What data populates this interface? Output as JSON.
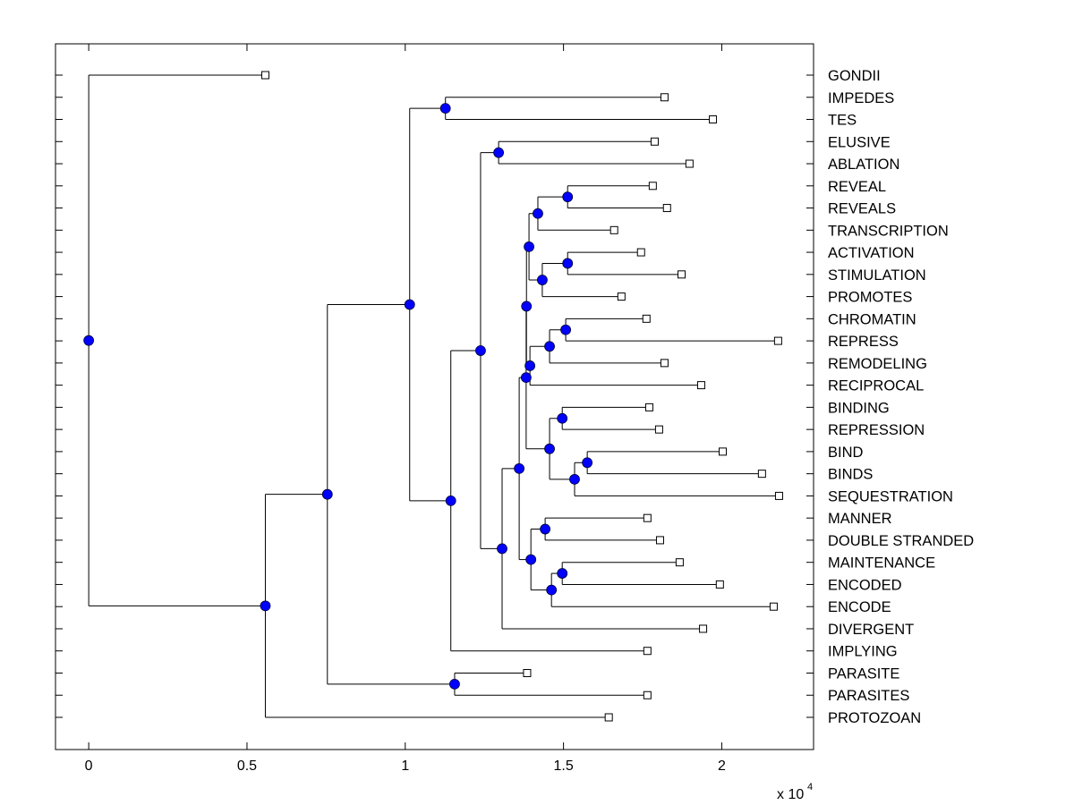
{
  "chart_data": {
    "type": "dendrogram",
    "title": "",
    "xlabel": "",
    "ylabel": "",
    "x_multiplier_label": "x 10",
    "x_multiplier_exponent": "4",
    "xlim": [
      -0.105,
      2.29
    ],
    "xticks": [
      0,
      0.5,
      1,
      1.5,
      2
    ],
    "xtick_labels": [
      "0",
      "0.5",
      "1",
      "1.5",
      "2"
    ],
    "grid": false,
    "node_color": "#0000ff",
    "leaves": [
      {
        "label": "GONDII",
        "x": 0.558
      },
      {
        "label": "IMPEDES",
        "x": 1.819
      },
      {
        "label": "TES",
        "x": 1.972
      },
      {
        "label": "ELUSIVE",
        "x": 1.788
      },
      {
        "label": "ABLATION",
        "x": 1.898
      },
      {
        "label": "REVEAL",
        "x": 1.782
      },
      {
        "label": "REVEALS",
        "x": 1.827
      },
      {
        "label": "TRANSCRIPTION",
        "x": 1.66
      },
      {
        "label": "ACTIVATION",
        "x": 1.745
      },
      {
        "label": "STIMULATION",
        "x": 1.873
      },
      {
        "label": "PROMOTES",
        "x": 1.683
      },
      {
        "label": "CHROMATIN",
        "x": 1.762
      },
      {
        "label": "REPRESS",
        "x": 2.178
      },
      {
        "label": "REMODELING",
        "x": 1.819
      },
      {
        "label": "RECIPROCAL",
        "x": 1.935
      },
      {
        "label": "BINDING",
        "x": 1.771
      },
      {
        "label": "REPRESSION",
        "x": 1.802
      },
      {
        "label": "BIND",
        "x": 2.003
      },
      {
        "label": "BINDS",
        "x": 2.127
      },
      {
        "label": "SEQUESTRATION",
        "x": 2.181
      },
      {
        "label": "MANNER",
        "x": 1.765
      },
      {
        "label": "DOUBLE STRANDED",
        "x": 1.805
      },
      {
        "label": "MAINTENANCE",
        "x": 1.867
      },
      {
        "label": "ENCODED",
        "x": 1.994
      },
      {
        "label": "ENCODE",
        "x": 2.164
      },
      {
        "label": "DIVERGENT",
        "x": 1.941
      },
      {
        "label": "IMPLYING",
        "x": 1.765
      },
      {
        "label": "PARASITE",
        "x": 1.385
      },
      {
        "label": "PARASITES",
        "x": 1.765
      },
      {
        "label": "PROTOZOAN",
        "x": 1.643
      }
    ],
    "nodes": [
      {
        "id": "n_root",
        "x": 0.0,
        "children": [
          "L0",
          "n_a"
        ]
      },
      {
        "id": "n_a",
        "x": 0.558,
        "children": [
          "n_b",
          "L29"
        ]
      },
      {
        "id": "n_b",
        "x": 0.754,
        "children": [
          "n_c",
          "n_p"
        ]
      },
      {
        "id": "n_p",
        "x": 1.156,
        "children": [
          "L27",
          "L28"
        ]
      },
      {
        "id": "n_c",
        "x": 1.014,
        "children": [
          "n_d",
          "n_e"
        ]
      },
      {
        "id": "n_d",
        "x": 1.127,
        "children": [
          "L1",
          "L2"
        ]
      },
      {
        "id": "n_e",
        "x": 1.144,
        "children": [
          "n_f",
          "L26"
        ]
      },
      {
        "id": "n_f",
        "x": 1.238,
        "children": [
          "n_g",
          "n_h"
        ]
      },
      {
        "id": "n_g",
        "x": 1.295,
        "children": [
          "L3",
          "L4"
        ]
      },
      {
        "id": "n_h",
        "x": 1.306,
        "children": [
          "n_i",
          "L25"
        ]
      },
      {
        "id": "n_i",
        "x": 1.36,
        "children": [
          "n_j",
          "n_k"
        ]
      },
      {
        "id": "n_j",
        "x": 1.382,
        "children": [
          "n_l",
          "n_m"
        ]
      },
      {
        "id": "n_l",
        "x": 1.383,
        "children": [
          "n_q",
          "n_o"
        ]
      },
      {
        "id": "n_q",
        "x": 1.391,
        "children": [
          "n_r",
          "n_s"
        ]
      },
      {
        "id": "n_r",
        "x": 1.419,
        "children": [
          "n_t",
          "L7"
        ]
      },
      {
        "id": "n_t",
        "x": 1.513,
        "children": [
          "L5",
          "L6"
        ]
      },
      {
        "id": "n_s",
        "x": 1.433,
        "children": [
          "n_u",
          "L10"
        ]
      },
      {
        "id": "n_u",
        "x": 1.513,
        "children": [
          "L8",
          "L9"
        ]
      },
      {
        "id": "n_o",
        "x": 1.394,
        "children": [
          "n_n",
          "L14"
        ]
      },
      {
        "id": "n_n",
        "x": 1.456,
        "children": [
          "n_v",
          "L13"
        ]
      },
      {
        "id": "n_v",
        "x": 1.507,
        "children": [
          "L11",
          "L12"
        ]
      },
      {
        "id": "n_m",
        "x": 1.456,
        "children": [
          "n_w",
          "n_x"
        ]
      },
      {
        "id": "n_w",
        "x": 1.496,
        "children": [
          "L15",
          "L16"
        ]
      },
      {
        "id": "n_x",
        "x": 1.535,
        "children": [
          "n_y",
          "L19"
        ]
      },
      {
        "id": "n_y",
        "x": 1.575,
        "children": [
          "L17",
          "L18"
        ]
      },
      {
        "id": "n_k",
        "x": 1.397,
        "children": [
          "n_z",
          "n_aa"
        ]
      },
      {
        "id": "n_z",
        "x": 1.442,
        "children": [
          "L20",
          "L21"
        ]
      },
      {
        "id": "n_aa",
        "x": 1.462,
        "children": [
          "n_ab",
          "L24"
        ]
      },
      {
        "id": "n_ab",
        "x": 1.496,
        "children": [
          "L22",
          "L23"
        ]
      }
    ]
  }
}
